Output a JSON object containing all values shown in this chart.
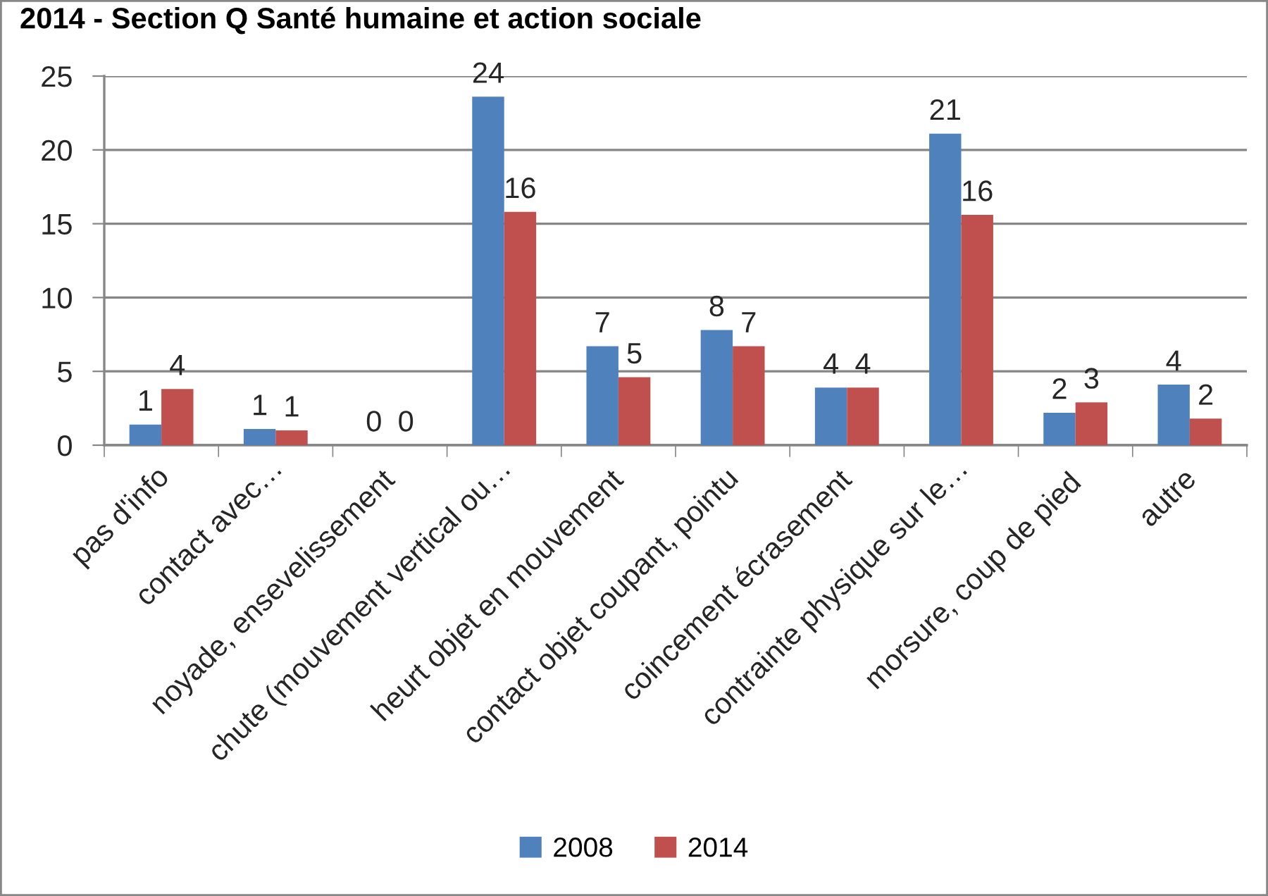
{
  "chart_data": {
    "type": "bar",
    "title": "2014 - Section Q Santé humaine et action sociale",
    "categories": [
      "pas d'info",
      "contact avec…",
      "noyade, ensevelissement",
      "chute (mouvement vertical ou…",
      "heurt objet en mouvement",
      "contact objet coupant, pointu",
      "coincement écrasement",
      "contrainte physique sur le…",
      "morsure, coup de pied",
      "autre"
    ],
    "series": [
      {
        "name": "2008",
        "color": "#4f81bd",
        "values": [
          1.4,
          1.1,
          0,
          23.6,
          6.7,
          7.8,
          3.9,
          21.1,
          2.2,
          4.1
        ],
        "value_labels": [
          "1",
          "1",
          "0",
          "24",
          "7",
          "8",
          "4",
          "21",
          "2",
          "4"
        ]
      },
      {
        "name": "2014",
        "color": "#c0504d",
        "values": [
          3.8,
          1.0,
          0,
          15.8,
          4.6,
          6.7,
          3.9,
          15.6,
          2.9,
          1.8
        ],
        "value_labels": [
          "4",
          "1",
          "0",
          "16",
          "5",
          "7",
          "4",
          "16",
          "3",
          "2"
        ]
      }
    ],
    "ylim": [
      0,
      25
    ],
    "yticks": [
      0,
      5,
      10,
      15,
      20,
      25
    ],
    "grid": "y",
    "legend": "bottom"
  }
}
